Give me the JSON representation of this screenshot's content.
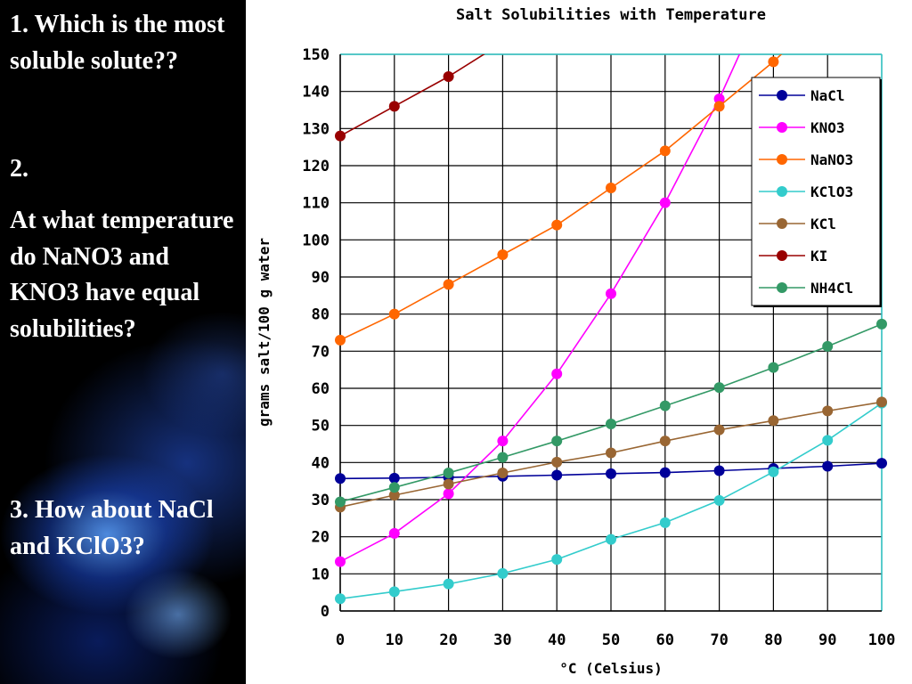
{
  "questions": {
    "q1": "1.  Which is the most soluble solute??",
    "q2_number": "2.",
    "q2": "At what temperature do NaNO3 and KNO3 have equal solubilities?",
    "q3": "3.  How about NaCl and KClO3?"
  },
  "chart_data": {
    "type": "line",
    "title": "Salt Solubilities with Temperature",
    "xlabel": "°C (Celsius)",
    "ylabel": "grams salt/100 g water",
    "xlim": [
      0,
      100
    ],
    "ylim": [
      0,
      150
    ],
    "x_ticks": [
      0,
      10,
      20,
      30,
      40,
      50,
      60,
      70,
      80,
      90,
      100
    ],
    "y_ticks": [
      0,
      10,
      20,
      30,
      40,
      50,
      60,
      70,
      80,
      90,
      100,
      110,
      120,
      130,
      140,
      150
    ],
    "grid": true,
    "legend_position": "top-right",
    "series": [
      {
        "name": "NaCl",
        "color": "#000099",
        "x": [
          0,
          10,
          20,
          30,
          40,
          50,
          60,
          70,
          80,
          90,
          100
        ],
        "values": [
          35.7,
          35.8,
          36.0,
          36.3,
          36.6,
          37.0,
          37.3,
          37.8,
          38.4,
          39.0,
          39.8
        ]
      },
      {
        "name": "KNO3",
        "color": "#ff00ff",
        "x": [
          0,
          10,
          20,
          30,
          40,
          50,
          60,
          70
        ],
        "values": [
          13.3,
          20.9,
          31.6,
          45.8,
          63.9,
          85.5,
          110,
          138
        ],
        "trend_to_x": 75
      },
      {
        "name": "NaNO3",
        "color": "#ff6600",
        "x": [
          0,
          10,
          20,
          30,
          40,
          50,
          60,
          70,
          80
        ],
        "values": [
          73,
          80,
          88,
          96,
          104,
          114,
          124,
          136,
          148
        ],
        "trend_to_x": 84
      },
      {
        "name": "KClO3",
        "color": "#33cccc",
        "x": [
          0,
          10,
          20,
          30,
          40,
          50,
          60,
          70,
          80,
          90,
          100
        ],
        "values": [
          3.3,
          5.2,
          7.3,
          10.1,
          13.9,
          19.3,
          23.8,
          29.8,
          37.5,
          46.0,
          56.0
        ]
      },
      {
        "name": "KCl",
        "color": "#996633",
        "x": [
          0,
          10,
          20,
          30,
          40,
          50,
          60,
          70,
          80,
          90,
          100
        ],
        "values": [
          28.0,
          31.2,
          34.2,
          37.2,
          40.1,
          42.6,
          45.8,
          48.8,
          51.3,
          53.9,
          56.3
        ]
      },
      {
        "name": "KI",
        "color": "#990000",
        "x": [
          0,
          10,
          20
        ],
        "values": [
          128,
          136,
          144
        ],
        "trend_to_x": 30
      },
      {
        "name": "NH4Cl",
        "color": "#339966",
        "x": [
          0,
          10,
          20,
          30,
          40,
          50,
          60,
          70,
          80,
          90,
          100
        ],
        "values": [
          29.4,
          33.3,
          37.2,
          41.4,
          45.8,
          50.4,
          55.3,
          60.2,
          65.6,
          71.3,
          77.3
        ]
      }
    ]
  }
}
